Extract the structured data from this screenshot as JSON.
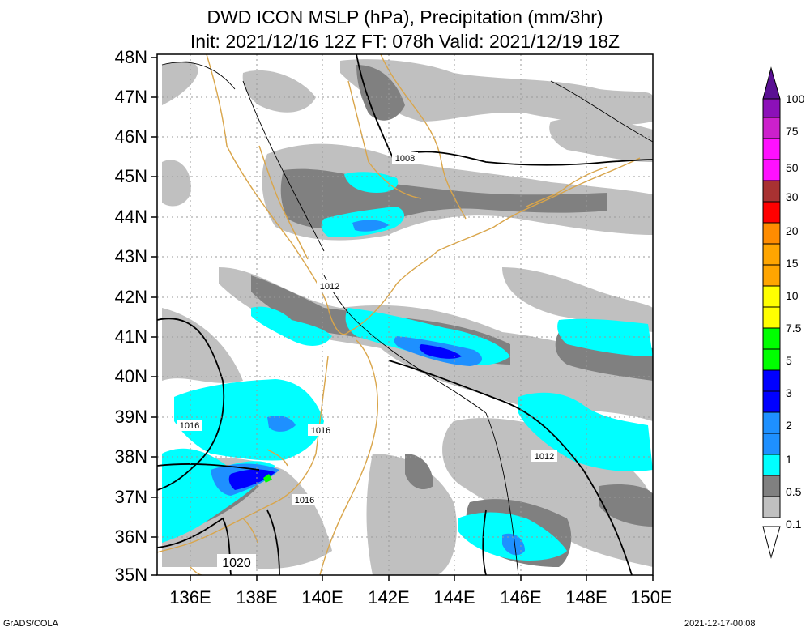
{
  "title_line1": "DWD ICON MSLP (hPa), Precipitation (mm/3hr)",
  "title_line2": "Init: 2021/12/16 12Z  FT: 078h  Valid: 2021/12/19 18Z",
  "lat_labels": [
    "48N",
    "47N",
    "46N",
    "45N",
    "44N",
    "43N",
    "42N",
    "41N",
    "40N",
    "39N",
    "38N",
    "37N",
    "36N",
    "35N"
  ],
  "lon_labels": [
    "136E",
    "138E",
    "140E",
    "142E",
    "144E",
    "146E",
    "148E",
    "150E"
  ],
  "isobar_labels": [
    "1008",
    "1012",
    "1012",
    "1016",
    "1016",
    "1016",
    "1020"
  ],
  "colorbar": {
    "labels": [
      "100",
      "75",
      "50",
      "30",
      "20",
      "15",
      "10",
      "7.5",
      "5",
      "3",
      "2",
      "1",
      "0.5",
      "0.1"
    ],
    "colors": [
      "#5a1093",
      "#8c10b8",
      "#cc20cc",
      "#ff10ff",
      "#a83232",
      "#ff0000",
      "#ff8c00",
      "#ffa500",
      "#ffff00",
      "#00ff00",
      "#0000ff",
      "#1e90ff",
      "#00ffff",
      "#808080",
      "#c0c0c0"
    ]
  },
  "footer_left": "GrADS/COLA",
  "footer_right": "2021-12-17-00:08"
}
